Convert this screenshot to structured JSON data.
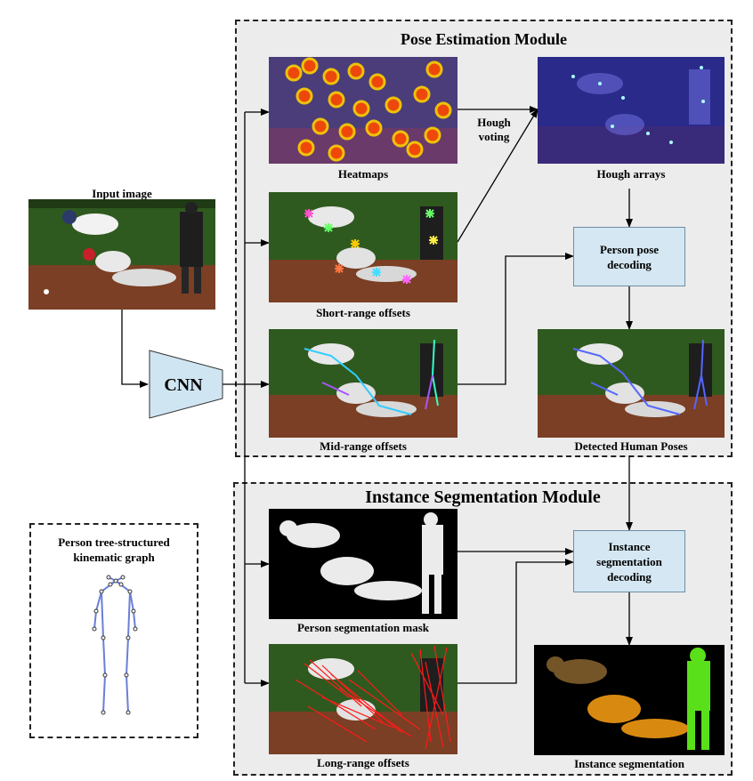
{
  "pose_module": {
    "title": "Pose Estimation Module"
  },
  "seg_module": {
    "title": "Instance Segmentation Module"
  },
  "input": {
    "caption": "Input image"
  },
  "cnn": {
    "label": "CNN"
  },
  "outputs": {
    "heatmaps": "Heatmaps",
    "short_range": "Short-range offsets",
    "mid_range": "Mid-range offsets",
    "hough_arrays": "Hough arrays",
    "detected_poses": "Detected Human Poses",
    "seg_mask": "Person segmentation mask",
    "long_range": "Long-range offsets",
    "instance_seg": "Instance segmentation"
  },
  "hough_voting": {
    "line1": "Hough",
    "line2": "voting"
  },
  "decoders": {
    "pose_line1": "Person pose",
    "pose_line2": "decoding",
    "seg_line1": "Instance",
    "seg_line2": "segmentation",
    "seg_line3": "decoding"
  },
  "kinematic": {
    "line1": "Person tree-structured",
    "line2": "kinematic graph"
  },
  "colors": {
    "module_bg": "#ececec",
    "decoder_fill": "#d4e7f2",
    "cnn_fill": "#cfe5f2",
    "skeleton": "#6a7fd6",
    "long_offset": "#ff1a1a",
    "heat": "#ff4400"
  }
}
